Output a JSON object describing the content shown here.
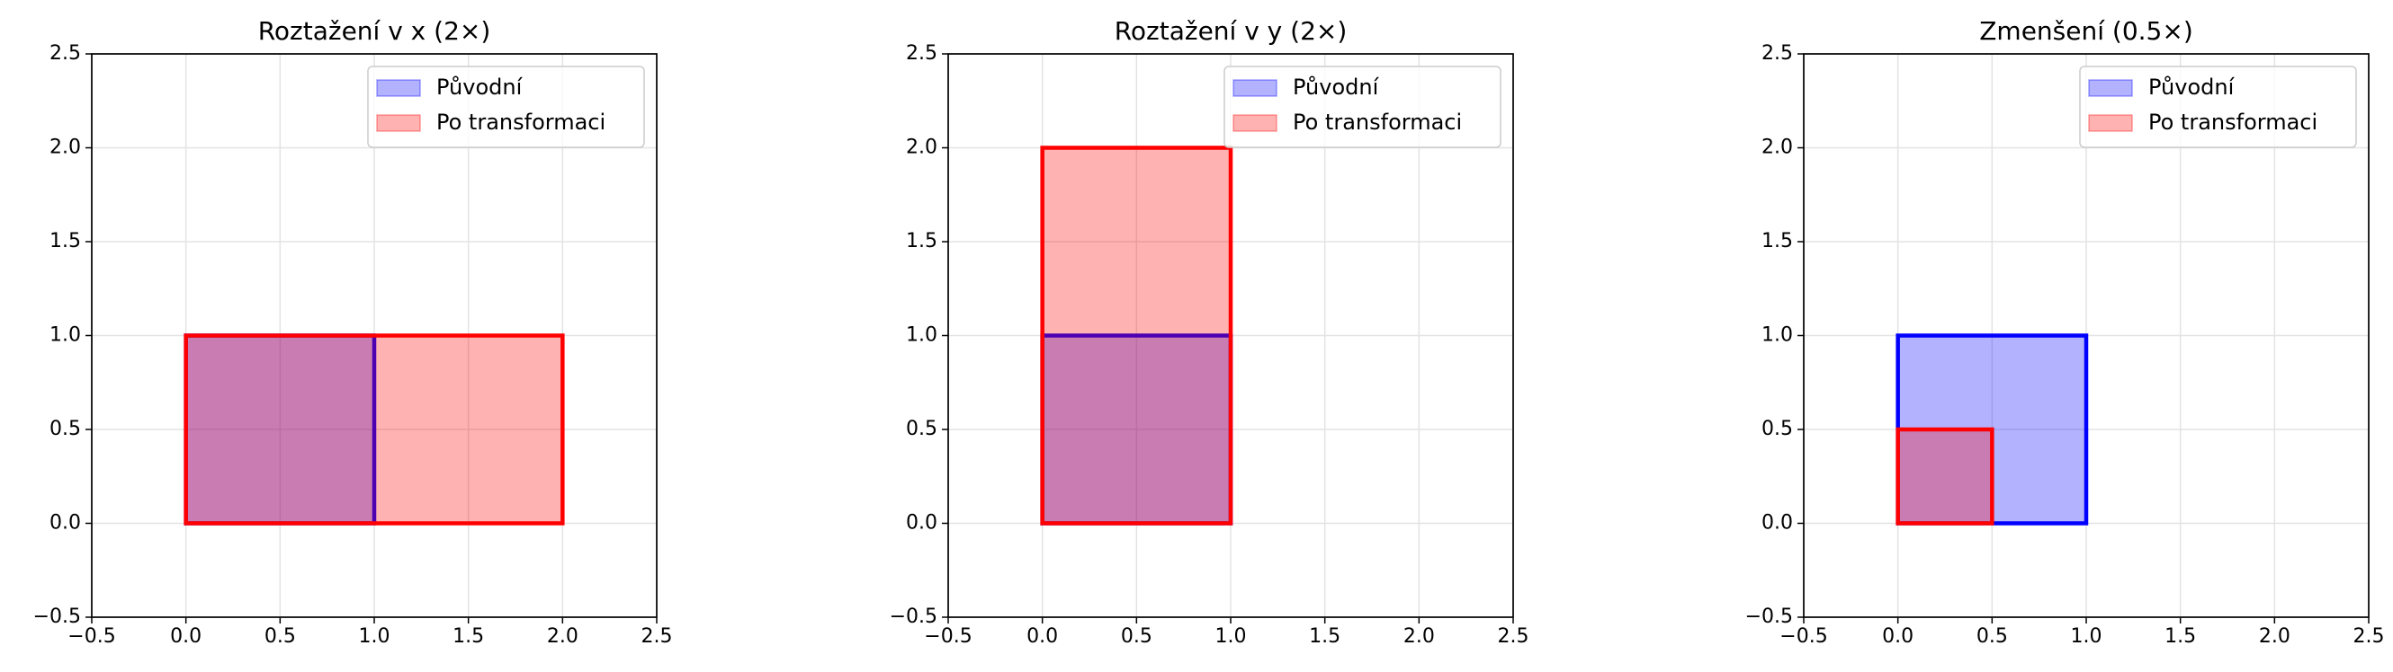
{
  "chart_data": [
    {
      "type": "polygon",
      "title": "Roztažení v x (2×)",
      "grid": true,
      "legend": "upper right",
      "xlim": [
        -0.5,
        2.5
      ],
      "ylim": [
        -0.5,
        2.5
      ],
      "xticks": [
        {
          "value": -0.5,
          "label": "−0.5"
        },
        {
          "value": 0,
          "label": "0.0"
        },
        {
          "value": 0.5,
          "label": "0.5"
        },
        {
          "value": 1,
          "label": "1.0"
        },
        {
          "value": 1.5,
          "label": "1.5"
        },
        {
          "value": 2,
          "label": "2.0"
        },
        {
          "value": 2.5,
          "label": "2.5"
        }
      ],
      "yticks": [
        {
          "value": -0.5,
          "label": "−0.5"
        },
        {
          "value": 0,
          "label": "0.0"
        },
        {
          "value": 0.5,
          "label": "0.5"
        },
        {
          "value": 1,
          "label": "1.0"
        },
        {
          "value": 1.5,
          "label": "1.5"
        },
        {
          "value": 2,
          "label": "2.0"
        },
        {
          "value": 2.5,
          "label": "2.5"
        }
      ],
      "series": [
        {
          "name": "Původní",
          "color": "#0000ff",
          "x": [
            0,
            1,
            1,
            0
          ],
          "y": [
            0,
            0,
            1,
            1
          ]
        },
        {
          "name": "Po transformaci",
          "color": "#ff0000",
          "x": [
            0,
            2,
            2,
            0
          ],
          "y": [
            0,
            0,
            1,
            1
          ]
        }
      ]
    },
    {
      "type": "polygon",
      "title": "Roztažení v y (2×)",
      "grid": true,
      "legend": "upper right",
      "xlim": [
        -0.5,
        2.5
      ],
      "ylim": [
        -0.5,
        2.5
      ],
      "xticks": [
        {
          "value": -0.5,
          "label": "−0.5"
        },
        {
          "value": 0,
          "label": "0.0"
        },
        {
          "value": 0.5,
          "label": "0.5"
        },
        {
          "value": 1,
          "label": "1.0"
        },
        {
          "value": 1.5,
          "label": "1.5"
        },
        {
          "value": 2,
          "label": "2.0"
        },
        {
          "value": 2.5,
          "label": "2.5"
        }
      ],
      "yticks": [
        {
          "value": -0.5,
          "label": "−0.5"
        },
        {
          "value": 0,
          "label": "0.0"
        },
        {
          "value": 0.5,
          "label": "0.5"
        },
        {
          "value": 1,
          "label": "1.0"
        },
        {
          "value": 1.5,
          "label": "1.5"
        },
        {
          "value": 2,
          "label": "2.0"
        },
        {
          "value": 2.5,
          "label": "2.5"
        }
      ],
      "series": [
        {
          "name": "Původní",
          "color": "#0000ff",
          "x": [
            0,
            1,
            1,
            0
          ],
          "y": [
            0,
            0,
            1,
            1
          ]
        },
        {
          "name": "Po transformaci",
          "color": "#ff0000",
          "x": [
            0,
            1,
            1,
            0
          ],
          "y": [
            0,
            0,
            2,
            2
          ]
        }
      ]
    },
    {
      "type": "polygon",
      "title": "Zmenšení (0.5×)",
      "grid": true,
      "legend": "upper right",
      "xlim": [
        -0.5,
        2.5
      ],
      "ylim": [
        -0.5,
        2.5
      ],
      "xticks": [
        {
          "value": -0.5,
          "label": "−0.5"
        },
        {
          "value": 0,
          "label": "0.0"
        },
        {
          "value": 0.5,
          "label": "0.5"
        },
        {
          "value": 1,
          "label": "1.0"
        },
        {
          "value": 1.5,
          "label": "1.5"
        },
        {
          "value": 2,
          "label": "2.0"
        },
        {
          "value": 2.5,
          "label": "2.5"
        }
      ],
      "yticks": [
        {
          "value": -0.5,
          "label": "−0.5"
        },
        {
          "value": 0,
          "label": "0.0"
        },
        {
          "value": 0.5,
          "label": "0.5"
        },
        {
          "value": 1,
          "label": "1.0"
        },
        {
          "value": 1.5,
          "label": "1.5"
        },
        {
          "value": 2,
          "label": "2.0"
        },
        {
          "value": 2.5,
          "label": "2.5"
        }
      ],
      "series": [
        {
          "name": "Původní",
          "color": "#0000ff",
          "x": [
            0,
            1,
            1,
            0
          ],
          "y": [
            0,
            0,
            1,
            1
          ]
        },
        {
          "name": "Po transformaci",
          "color": "#ff0000",
          "x": [
            0,
            0.5,
            0.5,
            0
          ],
          "y": [
            0,
            0,
            0.5,
            0.5
          ]
        }
      ]
    }
  ]
}
